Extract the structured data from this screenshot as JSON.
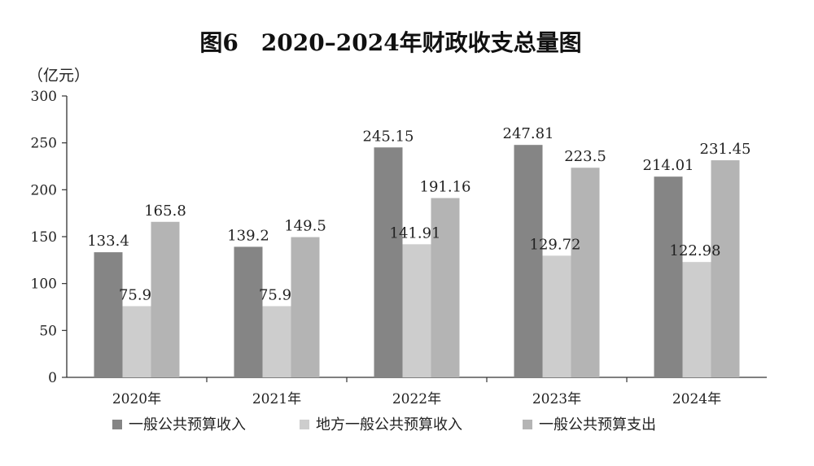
{
  "chart_data": {
    "type": "bar",
    "title": "图6　2020–2024年财政收支总量图",
    "ylabel": "（亿元）",
    "xlabel": "",
    "categories": [
      "2020年",
      "2021年",
      "2022年",
      "2023年",
      "2024年"
    ],
    "series": [
      {
        "name": "一般公共预算收入",
        "values": [
          133.4,
          139.2,
          245.15,
          247.81,
          214.01
        ],
        "labels": [
          "133.4",
          "139.2",
          "245.15",
          "247.81",
          "214.01"
        ],
        "color": "#858585"
      },
      {
        "name": "地方一般公共预算收入",
        "values": [
          75.9,
          75.9,
          141.91,
          129.72,
          122.98
        ],
        "labels": [
          "75.9",
          "75.9",
          "141.91",
          "129.72",
          "122.98"
        ],
        "color": "#cdcdcd"
      },
      {
        "name": "一般公共预算支出",
        "values": [
          165.8,
          149.5,
          191.16,
          223.5,
          231.45
        ],
        "labels": [
          "165.8",
          "149.5",
          "191.16",
          "223.5",
          "231.45"
        ],
        "color": "#b4b4b4"
      }
    ],
    "ylim": [
      0,
      300
    ],
    "yticks": [
      0,
      50,
      100,
      150,
      200,
      250,
      300
    ],
    "grid": false,
    "legend": "bottom"
  }
}
